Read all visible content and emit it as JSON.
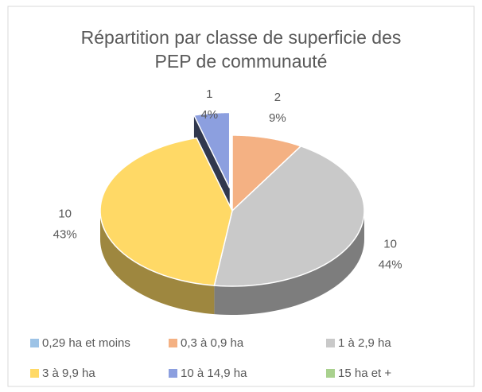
{
  "chart_data": {
    "type": "pie3d",
    "title": "Répartition par classe de superficie des PEP de communauté",
    "categories": [
      "0,29 ha et moins",
      "0,3 à 0,9 ha",
      "1 à 2,9 ha",
      "3 à 9,9 ha",
      "10 à 14,9 ha",
      "15 ha et +"
    ],
    "values": [
      0,
      2,
      10,
      10,
      1,
      0
    ],
    "percent_labels": [
      null,
      "9%",
      "44%",
      "43%",
      "4%",
      null
    ],
    "colors": [
      "#9dc3e6",
      "#f4b183",
      "#c9c9c9",
      "#ffd966",
      "#8c9fdf",
      "#a9d18e"
    ],
    "exploded": "10 à 14,9 ha"
  }
}
